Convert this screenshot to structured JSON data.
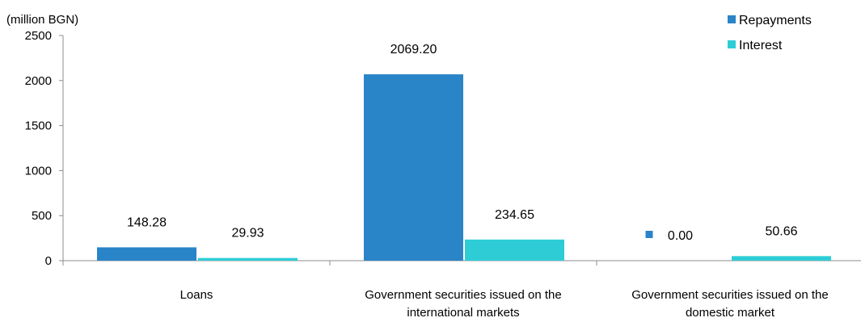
{
  "chart_data": {
    "type": "bar",
    "unit_label": "(million BGN)",
    "categories": [
      [
        "Loans"
      ],
      [
        "Government securities issued on the",
        "international markets"
      ],
      [
        "Government securities issued on the",
        "domestic market"
      ]
    ],
    "series": [
      {
        "name": "Repayments",
        "color": "#2a84c8",
        "values": [
          148.28,
          2069.2,
          0.0
        ],
        "labels": [
          "148.28",
          "2069.20",
          "0.00"
        ]
      },
      {
        "name": "Interest",
        "color": "#2ecdd6",
        "values": [
          29.93,
          234.65,
          50.66
        ],
        "labels": [
          "29.93",
          "234.65",
          "50.66"
        ]
      }
    ],
    "ylim": [
      0,
      2500
    ],
    "yticks": [
      "0",
      "500",
      "1000",
      "1500",
      "2000",
      "2500"
    ],
    "ytick_values": [
      0,
      500,
      1000,
      1500,
      2000,
      2500
    ],
    "legend_position": "top-right",
    "grid": false
  }
}
